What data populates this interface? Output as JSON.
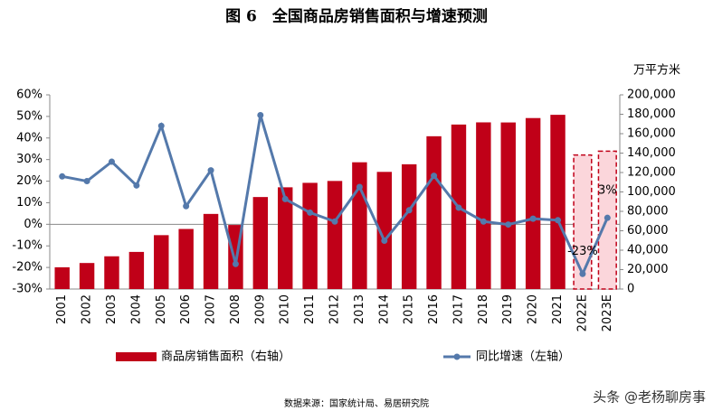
{
  "chart_data": {
    "type": "bar-line",
    "title": "图 6　全国商品房销售面积与增速预测",
    "source": "数据来源：国家统计局、易居研究院",
    "watermark": "头条 @老杨聊房事",
    "y2_label": "万平方米",
    "categories": [
      "2001",
      "2002",
      "2003",
      "2004",
      "2005",
      "2006",
      "2007",
      "2008",
      "2009",
      "2010",
      "2011",
      "2012",
      "2013",
      "2014",
      "2015",
      "2016",
      "2017",
      "2018",
      "2019",
      "2020",
      "2021",
      "2022E",
      "2023E"
    ],
    "series": [
      {
        "name": "商品房销售面积（右轴）",
        "type": "bar",
        "axis": "y2",
        "color": "#c00018",
        "estimate_fill": "#fbd6db",
        "values": [
          22412,
          26808,
          33718,
          38232,
          55487,
          61857,
          77355,
          65970,
          94755,
          104765,
          109367,
          111304,
          130551,
          120649,
          128495,
          157349,
          169408,
          171654,
          171558,
          176086,
          179433,
          138000,
          142000
        ]
      },
      {
        "name": "同比增速（左轴）",
        "type": "line",
        "axis": "y",
        "color": "#5479ab",
        "values": [
          22.2,
          20,
          29,
          18,
          45.6,
          8.4,
          25,
          -18.4,
          50.6,
          11.7,
          5.4,
          1.3,
          17.3,
          -7.6,
          6.5,
          22.5,
          7.7,
          1.3,
          -0.1,
          2.6,
          1.9,
          -23,
          3
        ],
        "value_labels": [
          null,
          null,
          null,
          null,
          null,
          null,
          null,
          null,
          null,
          null,
          null,
          null,
          null,
          null,
          null,
          null,
          null,
          null,
          null,
          null,
          null,
          "-23%",
          "3%"
        ]
      }
    ],
    "ylim": [
      -30,
      60
    ],
    "yticks": [
      {
        "value": -30,
        "label": "-30%"
      },
      {
        "value": -20,
        "label": "-20%"
      },
      {
        "value": -10,
        "label": "-10%"
      },
      {
        "value": 0,
        "label": "0%"
      },
      {
        "value": 10,
        "label": "10%"
      },
      {
        "value": 20,
        "label": "20%"
      },
      {
        "value": 30,
        "label": "30%"
      },
      {
        "value": 40,
        "label": "40%"
      },
      {
        "value": 50,
        "label": "50%"
      },
      {
        "value": 60,
        "label": "60%"
      }
    ],
    "y2lim": [
      0,
      200000
    ],
    "y2ticks": [
      0,
      {
        "value": 20000,
        "label": "20,000"
      },
      {
        "value": 40000,
        "label": "40,000"
      },
      {
        "value": 60000,
        "label": "60,000"
      },
      {
        "value": 80000,
        "label": "80,000"
      },
      {
        "value": 100000,
        "label": "100,000"
      },
      {
        "value": 120000,
        "label": "120,000"
      },
      {
        "value": 140000,
        "label": "140,000"
      },
      {
        "value": 160000,
        "label": "160,000"
      },
      {
        "value": 180000,
        "label": "180,000"
      },
      {
        "value": 200000,
        "label": "200,000"
      }
    ]
  }
}
